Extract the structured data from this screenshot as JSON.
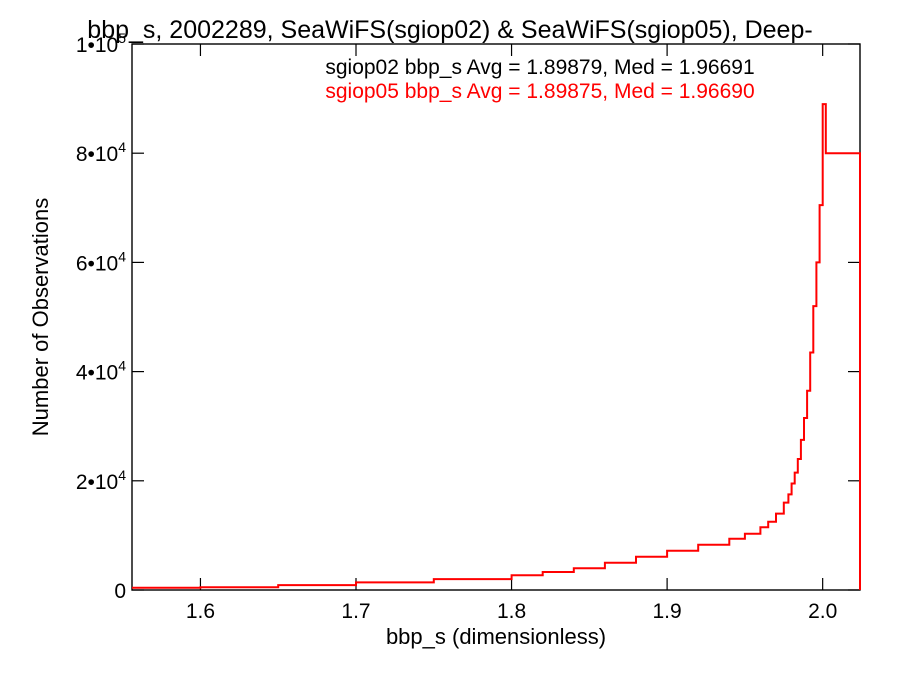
{
  "chart_data": {
    "type": "line",
    "title": "bbp_s, 2002289, SeaWiFS(sgiop02) & SeaWiFS(sgiop05), Deep-",
    "xlabel": "bbp_s (dimensionless)",
    "ylabel": "Number of Observations",
    "xlim": [
      1.556,
      2.024
    ],
    "ylim": [
      0,
      100000
    ],
    "x_ticks": [
      {
        "value": 1.6,
        "label": "1.6"
      },
      {
        "value": 1.7,
        "label": "1.7"
      },
      {
        "value": 1.8,
        "label": "1.8"
      },
      {
        "value": 1.9,
        "label": "1.9"
      },
      {
        "value": 2.0,
        "label": "2.0"
      }
    ],
    "y_ticks": [
      {
        "value": 0,
        "mantissa": "0",
        "exponent": ""
      },
      {
        "value": 20000,
        "mantissa": "2•10",
        "exponent": "4"
      },
      {
        "value": 40000,
        "mantissa": "4•10",
        "exponent": "4"
      },
      {
        "value": 60000,
        "mantissa": "6•10",
        "exponent": "4"
      },
      {
        "value": 80000,
        "mantissa": "8•10",
        "exponent": "4"
      },
      {
        "value": 100000,
        "mantissa": "1•10",
        "exponent": "5"
      }
    ],
    "grid": false,
    "annotations": [
      {
        "text": "sgiop02 bbp_s Avg = 1.89879, Med = 1.96691",
        "color": "#000000"
      },
      {
        "text": "sgiop05 bbp_s Avg = 1.89875, Med = 1.96690",
        "color": "#ff0000"
      }
    ],
    "series": [
      {
        "color": "#ff0000",
        "render": "histogram-step",
        "x": [
          1.556,
          1.6,
          1.65,
          1.7,
          1.75,
          1.8,
          1.82,
          1.84,
          1.86,
          1.88,
          1.9,
          1.92,
          1.94,
          1.95,
          1.96,
          1.965,
          1.97,
          1.975,
          1.978,
          1.98,
          1.982,
          1.984,
          1.986,
          1.988,
          1.99,
          1.992,
          1.994,
          1.996,
          1.998,
          2.0,
          2.002,
          2.024
        ],
        "y": [
          400,
          500,
          900,
          1400,
          2000,
          2700,
          3300,
          4000,
          5000,
          6100,
          7200,
          8300,
          9400,
          10300,
          11500,
          12500,
          14000,
          16000,
          17500,
          19500,
          21500,
          24000,
          27500,
          31500,
          36500,
          43500,
          52000,
          60000,
          70500,
          89000,
          80000,
          0
        ]
      }
    ]
  }
}
